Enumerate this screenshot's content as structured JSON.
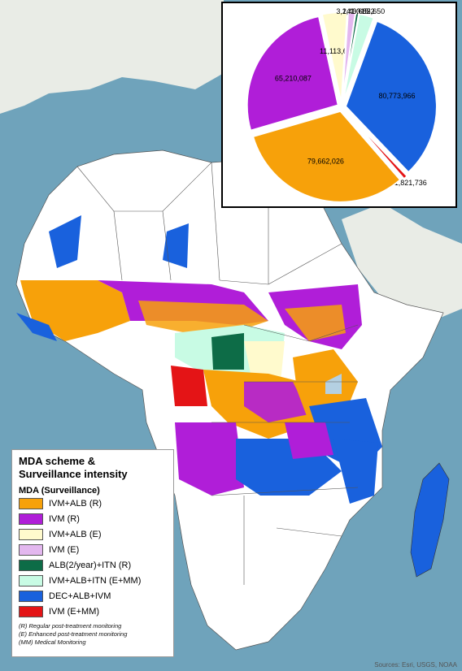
{
  "colors": {
    "ocean": "#6fa3bb",
    "land": "#ffffff",
    "IVM+ALB (R)": "#f7a10a",
    "IVM (R)": "#b01ed8",
    "IVM+ALB (E)": "#fffacd",
    "IVM (E)": "#e3b7ef",
    "ALB(2/year)+ITN (R)": "#0d6c47",
    "IVM+ALB+ITN (E+MM)": "#c8fbe4",
    "DEC+ALB+IVM": "#1961dd",
    "IVM (E+MM)": "#e41416"
  },
  "legend": {
    "title_line1": "MDA scheme &",
    "title_line2": "Surveillance intensity",
    "subtitle": "MDA (Surveillance)",
    "items": [
      {
        "label": "IVM+ALB (R)",
        "color": "#f7a10a"
      },
      {
        "label": "IVM (R)",
        "color": "#b01ed8"
      },
      {
        "label": "IVM+ALB (E)",
        "color": "#fffacd"
      },
      {
        "label": "IVM (E)",
        "color": "#e3b7ef"
      },
      {
        "label": "ALB(2/year)+ITN (R)",
        "color": "#0d6c47"
      },
      {
        "label": "IVM+ALB+ITN (E+MM)",
        "color": "#c8fbe4"
      },
      {
        "label": "DEC+ALB+IVM",
        "color": "#1961dd"
      },
      {
        "label": "IVM (E+MM)",
        "color": "#e41416"
      }
    ],
    "notes": [
      "(R) Regular post-treatment monitoring",
      "(E) Enhanced post-treatment monitoring",
      "(MM) Medical Monitoring"
    ]
  },
  "chart_data": {
    "type": "pie",
    "slices": [
      {
        "label": "80,773,966",
        "value": 80773966,
        "category": "DEC+ALB+IVM"
      },
      {
        "label": "1,821,736",
        "value": 1821736,
        "category": "IVM (E+MM)"
      },
      {
        "label": "79,662,026",
        "value": 79662026,
        "category": "IVM+ALB (R)"
      },
      {
        "label": "65,210,087",
        "value": 65210087,
        "category": "IVM (R)"
      },
      {
        "label": "11,113,605",
        "value": 11113605,
        "category": "IVM+ALB (E)"
      },
      {
        "label": "3,241,315",
        "value": 3241315,
        "category": "IVM (E)"
      },
      {
        "label": "1,400,822",
        "value": 1400822,
        "category": "ALB(2/year)+ITN (R)"
      },
      {
        "label": "6,665,650",
        "value": 6665650,
        "category": "IVM+ALB+ITN (E+MM)"
      }
    ]
  },
  "source": "Sources: Esri, USGS, NOAA"
}
